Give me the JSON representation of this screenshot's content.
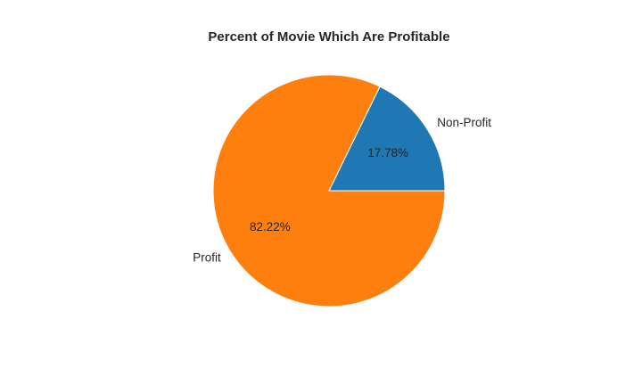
{
  "chart_data": {
    "type": "pie",
    "title": "Percent of Movie Which Are Profitable",
    "categories": [
      "Non-Profit",
      "Profit"
    ],
    "values": [
      17.78,
      82.22
    ],
    "percent_labels": [
      "17.78%",
      "82.22%"
    ],
    "colors": [
      "#1f77b4",
      "#ff7f0e"
    ],
    "start_angle_deg": 0,
    "direction": "counterclockwise",
    "legend": "none"
  }
}
